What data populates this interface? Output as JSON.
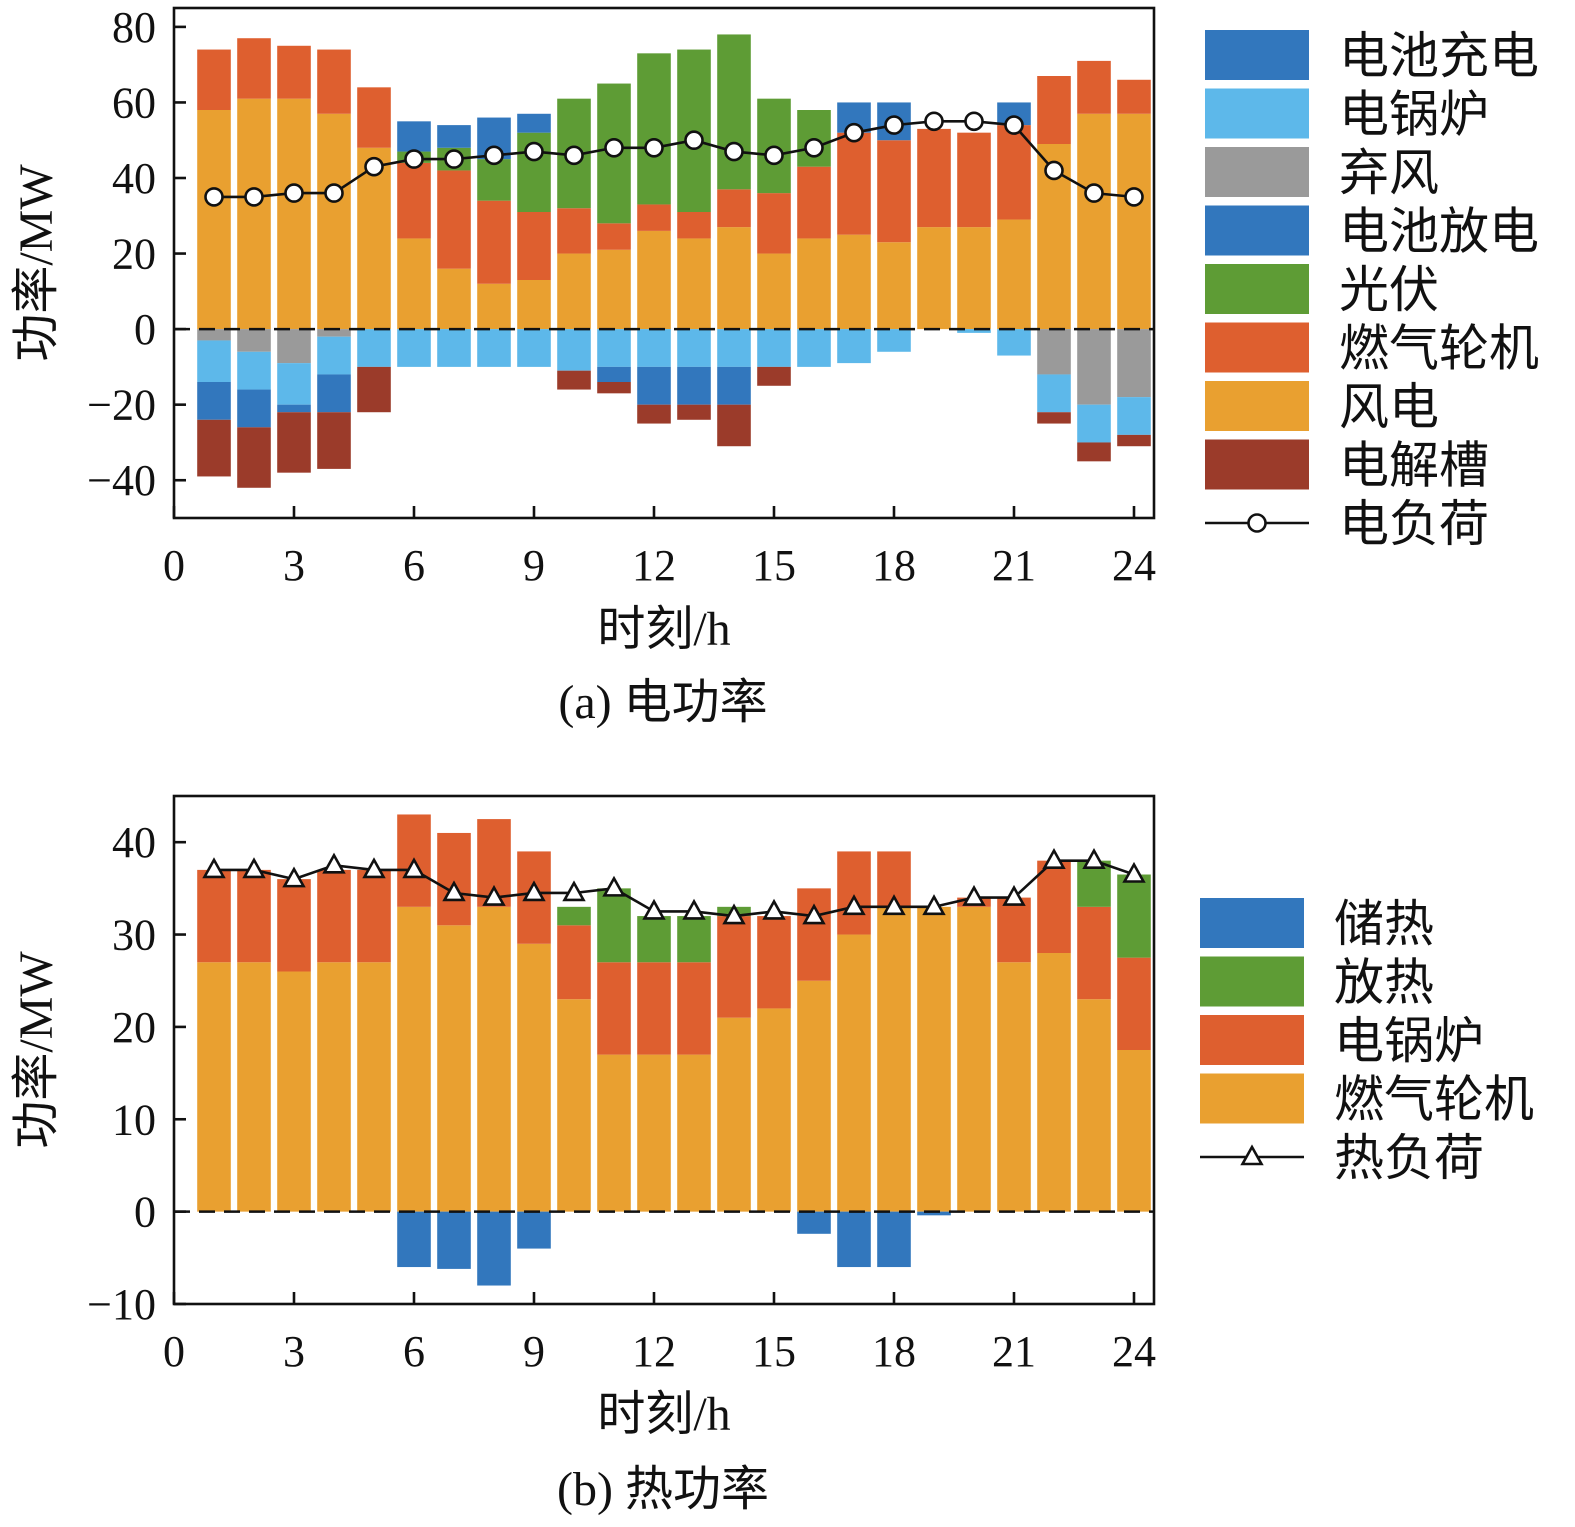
{
  "colors": {
    "battery": "#3277bd",
    "boiler": "#5db8ea",
    "curtail": "#9a9a9a",
    "pv": "#5e9c35",
    "gt": "#de5f2f",
    "wind": "#e9a030",
    "electrolyzer": "#9b3b2a",
    "heat_store": "#3277bd",
    "heat_release": "#5e9c35"
  },
  "chart_data": [
    {
      "type": "bar",
      "stacked": true,
      "caption": "(a) 电功率",
      "xlabel": "时刻/h",
      "ylabel": "功率/MW",
      "xlim": [
        0,
        24.5
      ],
      "ylim": [
        -50,
        85
      ],
      "xticks": [
        0,
        3,
        6,
        9,
        12,
        15,
        18,
        21,
        24
      ],
      "yticks": [
        -40,
        -20,
        0,
        20,
        40,
        60,
        80
      ],
      "grid": false,
      "legend_position": "right",
      "x": [
        1,
        2,
        3,
        4,
        5,
        6,
        7,
        8,
        9,
        10,
        11,
        12,
        13,
        14,
        15,
        16,
        17,
        18,
        19,
        20,
        21,
        22,
        23,
        24
      ],
      "positive_series": [
        {
          "name": "风电",
          "color_key": "wind",
          "values": [
            58,
            61,
            61,
            57,
            48,
            24,
            16,
            12,
            13,
            20,
            21,
            26,
            24,
            27,
            20,
            24,
            25,
            23,
            27,
            27,
            29,
            49,
            57,
            57
          ]
        },
        {
          "name": "燃气轮机",
          "color_key": "gt",
          "values": [
            16,
            16,
            14,
            17,
            16,
            20,
            26,
            22,
            18,
            12,
            7,
            7,
            7,
            10,
            16,
            19,
            27,
            27,
            26,
            25,
            25,
            18,
            14,
            9
          ]
        },
        {
          "name": "光伏",
          "color_key": "pv",
          "values": [
            0,
            0,
            0,
            0,
            0,
            3,
            6,
            11,
            21,
            29,
            37,
            40,
            43,
            41,
            25,
            15,
            0,
            0,
            0,
            0,
            0,
            0,
            0,
            0
          ]
        },
        {
          "name": "电池放电",
          "color_key": "battery",
          "values": [
            0,
            0,
            0,
            0,
            0,
            8,
            6,
            11,
            5,
            0,
            0,
            0,
            0,
            0,
            0,
            0,
            8,
            10,
            0,
            0,
            6,
            0,
            0,
            0
          ]
        }
      ],
      "negative_series": [
        {
          "name": "弃风",
          "color_key": "curtail",
          "values": [
            -3,
            -6,
            -9,
            -2,
            0,
            0,
            0,
            0,
            0,
            0,
            0,
            0,
            0,
            0,
            0,
            0,
            0,
            0,
            0,
            0,
            0,
            -12,
            -20,
            -18
          ]
        },
        {
          "name": "电锅炉",
          "color_key": "boiler",
          "values": [
            -11,
            -10,
            -11,
            -10,
            -10,
            -10,
            -10,
            -10,
            -10,
            -11,
            -10,
            -10,
            -10,
            -10,
            -10,
            -10,
            -9,
            -6,
            0,
            -1,
            -7,
            -10,
            -10,
            -10
          ]
        },
        {
          "name": "电池充电",
          "color_key": "battery",
          "values": [
            -10,
            -10,
            -2,
            -10,
            0,
            0,
            0,
            0,
            0,
            0,
            -4,
            -10,
            -10,
            -10,
            0,
            0,
            0,
            0,
            0,
            0,
            0,
            0,
            0,
            0
          ]
        },
        {
          "name": "电解槽",
          "color_key": "electrolyzer",
          "values": [
            -15,
            -16,
            -16,
            -15,
            -12,
            0,
            0,
            0,
            0,
            -5,
            -3,
            -5,
            -4,
            -11,
            -5,
            0,
            0,
            0,
            0,
            0,
            0,
            -3,
            -5,
            -3
          ]
        }
      ],
      "load": {
        "name": "电负荷",
        "marker": "circle",
        "values": [
          35,
          35,
          36,
          36,
          43,
          45,
          45,
          46,
          47,
          46,
          48,
          48,
          50,
          47,
          46,
          48,
          52,
          54,
          55,
          55,
          54,
          42,
          36,
          35
        ]
      },
      "legend": [
        {
          "label": "电池充电",
          "color_key": "battery",
          "kind": "box"
        },
        {
          "label": "电锅炉",
          "color_key": "boiler",
          "kind": "box"
        },
        {
          "label": "弃风",
          "color_key": "curtail",
          "kind": "box"
        },
        {
          "label": "电池放电",
          "color_key": "battery",
          "kind": "box"
        },
        {
          "label": "光伏",
          "color_key": "pv",
          "kind": "box"
        },
        {
          "label": "燃气轮机",
          "color_key": "gt",
          "kind": "box"
        },
        {
          "label": "风电",
          "color_key": "wind",
          "kind": "box"
        },
        {
          "label": "电解槽",
          "color_key": "electrolyzer",
          "kind": "box"
        },
        {
          "label": "电负荷",
          "kind": "line-circle"
        }
      ]
    },
    {
      "type": "bar",
      "stacked": true,
      "caption": "(b) 热功率",
      "xlabel": "时刻/h",
      "ylabel": "功率/MW",
      "xlim": [
        0,
        24.5
      ],
      "ylim": [
        -10,
        45
      ],
      "xticks": [
        0,
        3,
        6,
        9,
        12,
        15,
        18,
        21,
        24
      ],
      "yticks": [
        -10,
        0,
        10,
        20,
        30,
        40
      ],
      "grid": false,
      "legend_position": "right",
      "x": [
        1,
        2,
        3,
        4,
        5,
        6,
        7,
        8,
        9,
        10,
        11,
        12,
        13,
        14,
        15,
        16,
        17,
        18,
        19,
        20,
        21,
        22,
        23,
        24
      ],
      "positive_series": [
        {
          "name": "燃气轮机",
          "color_key": "wind",
          "values": [
            27,
            27,
            26,
            27,
            27,
            33,
            31,
            33,
            29,
            23,
            17,
            17,
            17,
            21,
            22,
            25,
            30,
            33,
            33,
            33,
            27,
            28,
            23,
            17.5
          ]
        },
        {
          "name": "电锅炉",
          "color_key": "gt",
          "values": [
            10,
            10,
            10,
            10,
            10,
            10,
            10,
            9.5,
            10,
            8,
            10,
            10,
            10,
            11,
            10,
            10,
            9,
            6,
            0,
            1,
            7,
            10,
            10,
            10
          ]
        },
        {
          "name": "放热",
          "color_key": "heat_release",
          "values": [
            0,
            0,
            0,
            0,
            0,
            0,
            0,
            0,
            0,
            2,
            8,
            5,
            5,
            1,
            0,
            0,
            0,
            0,
            0,
            0,
            0,
            0,
            5,
            9
          ]
        }
      ],
      "negative_series": [
        {
          "name": "储热",
          "color_key": "heat_store",
          "values": [
            0,
            0,
            0,
            0,
            0,
            -6,
            -6.2,
            -8,
            -4,
            0,
            0,
            0,
            0,
            0,
            0,
            -2.4,
            -6,
            -6,
            -0.4,
            0,
            0,
            0,
            0,
            0
          ]
        }
      ],
      "load": {
        "name": "热负荷",
        "marker": "triangle",
        "values": [
          37,
          37,
          36,
          37.5,
          37,
          37,
          34.5,
          34,
          34.5,
          34.5,
          35,
          32.5,
          32.5,
          32,
          32.5,
          32,
          33,
          33,
          33,
          34,
          34,
          38,
          38,
          36.5
        ]
      },
      "legend": [
        {
          "label": "储热",
          "color_key": "heat_store",
          "kind": "box"
        },
        {
          "label": "放热",
          "color_key": "heat_release",
          "kind": "box"
        },
        {
          "label": "电锅炉",
          "color_key": "gt",
          "kind": "box"
        },
        {
          "label": "燃气轮机",
          "color_key": "wind",
          "kind": "box"
        },
        {
          "label": "热负荷",
          "kind": "line-triangle"
        }
      ]
    }
  ]
}
